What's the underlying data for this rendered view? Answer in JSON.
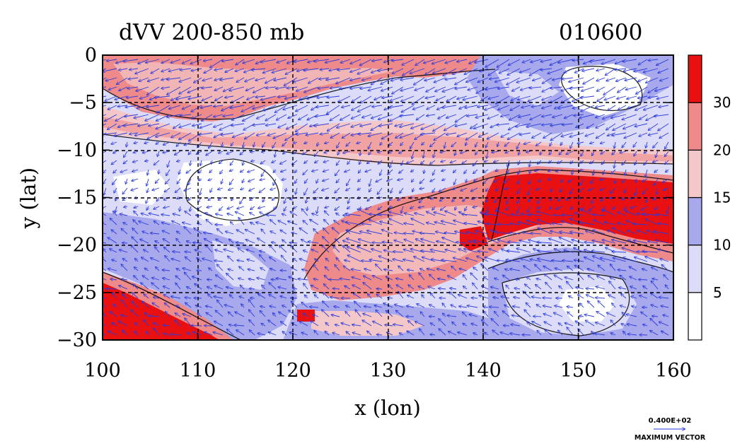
{
  "title": "dVV 200-850 mb",
  "timestamp": "010600",
  "x_axis": {
    "label": "x (lon)",
    "ticks": [
      {
        "value": 100,
        "label": "100"
      },
      {
        "value": 110,
        "label": "110"
      },
      {
        "value": 120,
        "label": "120"
      },
      {
        "value": 130,
        "label": "130"
      },
      {
        "value": 140,
        "label": "140"
      },
      {
        "value": 150,
        "label": "150"
      },
      {
        "value": 160,
        "label": "160"
      }
    ]
  },
  "y_axis": {
    "label": "y (lat)",
    "ticks": [
      {
        "value": 0,
        "label": "0"
      },
      {
        "value": -5,
        "label": "−5"
      },
      {
        "value": -10,
        "label": "−10"
      },
      {
        "value": -15,
        "label": "−15"
      },
      {
        "value": -20,
        "label": "−20"
      },
      {
        "value": -25,
        "label": "−25"
      },
      {
        "value": -30,
        "label": "−30"
      }
    ]
  },
  "colorbar": {
    "labels": [
      "5",
      "10",
      "15",
      "20",
      "30"
    ],
    "bins": [
      {
        "color": "#ffffff"
      },
      {
        "color": "#dcdcf8"
      },
      {
        "color": "#a8a8ec"
      },
      {
        "color": "#f4c8c8"
      },
      {
        "color": "#ee8a8a"
      },
      {
        "color": "#e81010"
      }
    ]
  },
  "max_vector": {
    "value": "0.400E+02",
    "label": "MAXIMUM VECTOR"
  },
  "colors": {
    "vector": "#2a3adc",
    "contour": "#000000"
  }
}
